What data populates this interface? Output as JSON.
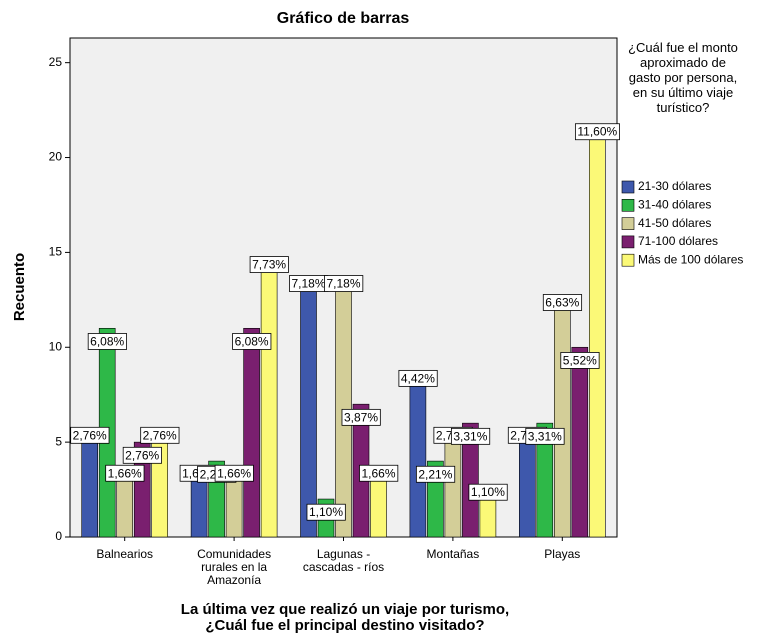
{
  "chart_data": {
    "type": "bar",
    "title": "Gráfico de barras",
    "x_label": "La última vez que realizó un viaje por turismo, ¿Cuál fue el principal destino visitado?",
    "y_label": "Recuento",
    "legend_title": "¿Cuál fue el monto aproximado de gasto por persona, en su último viaje turístico?",
    "legend": "right",
    "categories": [
      "Balnearios",
      "Comunidades rurales en la Amazonía",
      "Lagunas - cascadas - ríos",
      "Montañas",
      "Playas"
    ],
    "series": [
      {
        "name": "21-30 dólares",
        "color": "#3e58ac",
        "values": [
          5,
          3,
          13,
          8,
          5
        ],
        "value_labels": [
          "2,76%",
          "1,66%",
          "7,18%",
          "4,42%",
          "2,76%"
        ]
      },
      {
        "name": "31-40 dólares",
        "color": "#2eb848",
        "values": [
          11,
          4,
          2,
          4,
          6
        ],
        "value_labels": [
          "6,08%",
          "2,21%",
          "1,10%",
          "2,21%",
          "3,31%"
        ]
      },
      {
        "name": "41-50 dólares",
        "color": "#d3ce98",
        "values": [
          3,
          3,
          13,
          5,
          12
        ],
        "value_labels": [
          "1,66%",
          "1,66%",
          "7,18%",
          "2,76%",
          "6,63%"
        ]
      },
      {
        "name": "71-100 dólares",
        "color": "#7a1f6f",
        "values": [
          5,
          11,
          7,
          6,
          10
        ],
        "value_labels": [
          "2,76%",
          "6,08%",
          "3,87%",
          "3,31%",
          "5,52%"
        ]
      },
      {
        "name": "Más de 100 dólares",
        "color": "#fbf977",
        "values": [
          5,
          14,
          3,
          2,
          21
        ],
        "value_labels": [
          "2,76%",
          "7,73%",
          "1,66%",
          "1,10%",
          "11,60%"
        ]
      }
    ],
    "ylim": [
      0,
      26.3
    ],
    "yticks": [
      0,
      5,
      10,
      15,
      20,
      25
    ]
  }
}
